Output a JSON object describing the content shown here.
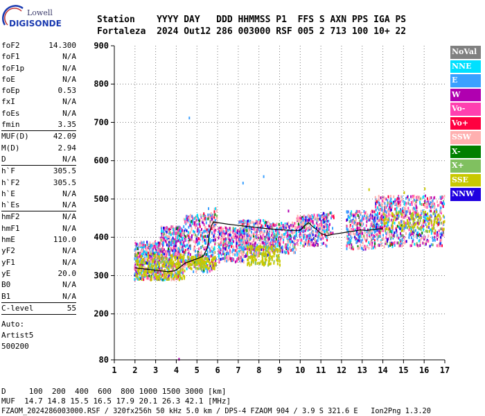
{
  "logo": {
    "line1": "Lowell",
    "line2": "DIGISONDE"
  },
  "header": {
    "row1": "Station    YYYY DAY   DDD HHMMSS P1  FFS S AXN PPS IGA PS",
    "row2": "Fortaleza  2024 Out12 286 003000 RSF 005 2 713 100 10+ 22"
  },
  "params": {
    "g1": [
      [
        "foF2",
        "14.300"
      ],
      [
        "foF1",
        "N/A"
      ],
      [
        "foF1p",
        "N/A"
      ],
      [
        "foE",
        "N/A"
      ],
      [
        "foEp",
        "0.53"
      ],
      [
        "fxI",
        "N/A"
      ],
      [
        "foEs",
        "N/A"
      ],
      [
        "fmin",
        "3.35"
      ]
    ],
    "g2": [
      [
        "MUF(D)",
        "42.09"
      ],
      [
        "M(D)",
        "2.94"
      ],
      [
        "D",
        "N/A"
      ]
    ],
    "g3": [
      [
        "h`F",
        "305.5"
      ],
      [
        "h`F2",
        "305.5"
      ],
      [
        "h`E",
        "N/A"
      ],
      [
        "h`Es",
        "N/A"
      ]
    ],
    "g4": [
      [
        "hmF2",
        "N/A"
      ],
      [
        "hmF1",
        "N/A"
      ],
      [
        "hmE",
        "110.0"
      ],
      [
        "yF2",
        "N/A"
      ],
      [
        "yF1",
        "N/A"
      ],
      [
        "yE",
        "20.0"
      ],
      [
        "B0",
        "N/A"
      ],
      [
        "B1",
        "N/A"
      ]
    ],
    "g5": [
      [
        "C-level",
        "55"
      ]
    ],
    "auto": [
      "Auto:",
      "Artist5",
      "500200"
    ]
  },
  "legend": [
    {
      "label": "NoVal",
      "color": "#808080"
    },
    {
      "label": "NNE",
      "color": "#00e0ff"
    },
    {
      "label": "E",
      "color": "#3aa0ff"
    },
    {
      "label": "W",
      "color": "#b000b0"
    },
    {
      "label": "Vo-",
      "color": "#ff40b0"
    },
    {
      "label": "Vo+",
      "color": "#ff0040"
    },
    {
      "label": "SSW",
      "color": "#ffb0b0"
    },
    {
      "label": "X-",
      "color": "#008000"
    },
    {
      "label": "X+",
      "color": "#80c060"
    },
    {
      "label": "SSE",
      "color": "#c8c800"
    },
    {
      "label": "NNW",
      "color": "#2000e0"
    }
  ],
  "footer": {
    "line1": "D     100  200  400  600  800 1000 1500 3000 [km]",
    "line2": "MUF  14.7 14.8 15.5 16.5 17.9 20.1 26.3 42.1 [MHz]",
    "line3": "FZAOM_2024286003000.RSF / 320fx256h 50 kHz 5.0 km / DPS-4 FZAOM 904 / 3.9 S 321.6 E   Ion2Png 1.3.20"
  },
  "chart_data": {
    "type": "scatter",
    "xlim": [
      1,
      17
    ],
    "ylim": [
      80,
      900
    ],
    "x_ticks": [
      1,
      2,
      3,
      4,
      5,
      6,
      7,
      8,
      9,
      10,
      11,
      12,
      13,
      14,
      15,
      16,
      17
    ],
    "y_ticks": [
      80,
      200,
      300,
      400,
      500,
      600,
      700,
      800,
      900
    ],
    "trace_x": [
      2.0,
      2.5,
      3.0,
      3.3,
      3.6,
      3.9,
      4.1,
      4.4,
      4.7,
      5.0,
      5.3,
      5.5,
      5.6,
      5.7,
      5.8,
      6.5,
      7.5,
      8.5,
      9.0,
      9.5,
      10.0,
      10.2,
      10.4,
      10.6,
      10.8,
      11.0,
      11.3,
      11.6,
      12.0,
      12.3,
      12.6,
      12.9,
      13.2,
      13.5,
      13.8,
      14.0
    ],
    "trace_y": [
      320,
      317,
      314,
      312,
      310,
      312,
      318,
      332,
      338,
      344,
      350,
      372,
      408,
      430,
      440,
      434,
      428,
      422,
      420,
      418,
      418,
      430,
      438,
      428,
      420,
      410,
      404,
      408,
      411,
      414,
      416,
      419,
      418,
      420,
      422,
      422
    ],
    "clusters": [
      {
        "x": [
          1.95,
          3.2
        ],
        "y": [
          292,
          392
        ],
        "n": 420
      },
      {
        "x": [
          3.2,
          4.3
        ],
        "y": [
          292,
          432
        ],
        "n": 460
      },
      {
        "x": [
          4.3,
          5.9
        ],
        "y": [
          312,
          462
        ],
        "n": 420
      },
      {
        "x": [
          5.5,
          5.95
        ],
        "y": [
          420,
          482
        ],
        "n": 40
      },
      {
        "x": [
          6.0,
          7.3
        ],
        "y": [
          338,
          430
        ],
        "n": 300
      },
      {
        "x": [
          7.0,
          8.5
        ],
        "y": [
          352,
          448
        ],
        "n": 380
      },
      {
        "x": [
          8.5,
          9.8
        ],
        "y": [
          362,
          442
        ],
        "n": 260
      },
      {
        "x": [
          9.8,
          11.3
        ],
        "y": [
          380,
          462
        ],
        "n": 300
      },
      {
        "x": [
          11.0,
          11.6
        ],
        "y": [
          410,
          470
        ],
        "n": 50
      },
      {
        "x": [
          12.2,
          13.6
        ],
        "y": [
          372,
          472
        ],
        "n": 300
      },
      {
        "x": [
          13.6,
          15.0
        ],
        "y": [
          378,
          512
        ],
        "n": 360
      },
      {
        "x": [
          15.0,
          16.95
        ],
        "y": [
          380,
          512
        ],
        "n": 380
      }
    ],
    "yellow_clusters": [
      {
        "x": [
          2.0,
          4.4
        ],
        "y": [
          292,
          360
        ],
        "n": 220
      },
      {
        "x": [
          4.5,
          5.9
        ],
        "y": [
          320,
          352
        ],
        "n": 120
      },
      {
        "x": [
          7.4,
          9.0
        ],
        "y": [
          330,
          380
        ],
        "n": 160
      },
      {
        "x": [
          14.0,
          17.0
        ],
        "y": [
          418,
          470
        ],
        "n": 120
      }
    ],
    "outliers": [
      {
        "x": 4.6,
        "y": 715,
        "c": "#3aa0ff"
      },
      {
        "x": 7.2,
        "y": 545,
        "c": "#3aa0ff"
      },
      {
        "x": 8.2,
        "y": 562,
        "c": "#3aa0ff"
      },
      {
        "x": 4.1,
        "y": 85,
        "c": "#b000b0"
      },
      {
        "x": 13.3,
        "y": 528,
        "c": "#c8c800"
      },
      {
        "x": 16.0,
        "y": 530,
        "c": "#c8c800"
      },
      {
        "x": 15.0,
        "y": 520,
        "c": "#c8c800"
      },
      {
        "x": 5.3,
        "y": 465,
        "c": "#ff0040"
      },
      {
        "x": 9.4,
        "y": 472,
        "c": "#b000b0"
      },
      {
        "x": 11.5,
        "y": 458,
        "c": "#ff40b0"
      }
    ]
  }
}
